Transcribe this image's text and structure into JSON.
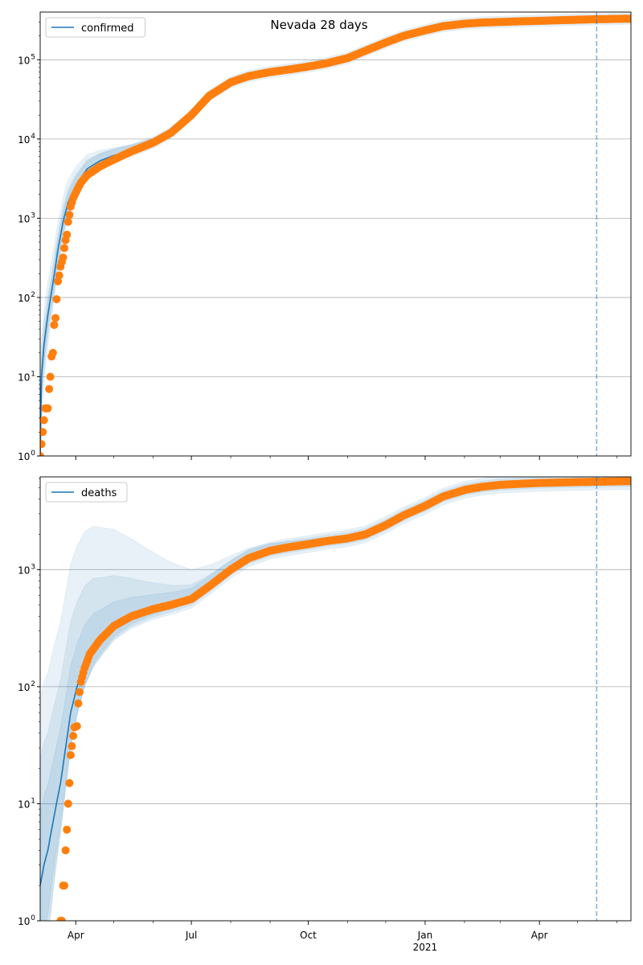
{
  "chart_data": [
    {
      "type": "line",
      "title": "Nevada 28 days",
      "yscale": "log",
      "ylim": [
        1,
        400000
      ],
      "xlim": [
        "2020-03-04",
        "2021-06-12"
      ],
      "grid": "y-major",
      "legend": {
        "placement": "top-left",
        "entries": [
          "confirmed"
        ]
      },
      "vline": "2021-05-16",
      "ytick_labels": [
        "10^0",
        "10^1",
        "10^2",
        "10^3",
        "10^4",
        "10^5"
      ],
      "colors": {
        "fit": "#1f77b4",
        "observed": "#ff7f0e",
        "band": "#1f77b4"
      },
      "fit": [
        [
          "2020-03-04",
          1
        ],
        [
          "2020-03-05",
          10
        ],
        [
          "2020-03-07",
          25
        ],
        [
          "2020-03-10",
          60
        ],
        [
          "2020-03-14",
          150
        ],
        [
          "2020-03-18",
          400
        ],
        [
          "2020-03-22",
          900
        ],
        [
          "2020-03-26",
          1600
        ],
        [
          "2020-04-01",
          2600
        ],
        [
          "2020-04-10",
          4200
        ],
        [
          "2020-04-20",
          5300
        ],
        [
          "2020-05-01",
          6200
        ],
        [
          "2020-05-15",
          7200
        ],
        [
          "2020-06-01",
          9000
        ],
        [
          "2020-06-15",
          12000
        ],
        [
          "2020-07-01",
          20000
        ],
        [
          "2020-07-15",
          35000
        ],
        [
          "2020-08-01",
          52000
        ],
        [
          "2020-08-15",
          62000
        ],
        [
          "2020-09-01",
          70000
        ],
        [
          "2020-09-15",
          75000
        ],
        [
          "2020-10-01",
          82000
        ],
        [
          "2020-10-15",
          90000
        ],
        [
          "2020-11-01",
          105000
        ],
        [
          "2020-11-15",
          130000
        ],
        [
          "2020-12-01",
          165000
        ],
        [
          "2020-12-15",
          200000
        ],
        [
          "2021-01-01",
          235000
        ],
        [
          "2021-01-15",
          265000
        ],
        [
          "2021-02-01",
          285000
        ],
        [
          "2021-02-15",
          295000
        ],
        [
          "2021-03-01",
          300000
        ],
        [
          "2021-04-01",
          310000
        ],
        [
          "2021-05-01",
          320000
        ],
        [
          "2021-06-12",
          330000
        ]
      ],
      "observed": [
        [
          "2020-03-04",
          1
        ],
        [
          "2020-03-06",
          2
        ],
        [
          "2020-03-08",
          4
        ],
        [
          "2020-03-10",
          4
        ],
        [
          "2020-03-11",
          7
        ],
        [
          "2020-03-12",
          10
        ],
        [
          "2020-03-13",
          18
        ],
        [
          "2020-03-14",
          20
        ],
        [
          "2020-03-15",
          45
        ],
        [
          "2020-03-16",
          55
        ],
        [
          "2020-03-17",
          95
        ],
        [
          "2020-03-18",
          160
        ],
        [
          "2020-03-19",
          190
        ],
        [
          "2020-03-20",
          245
        ],
        [
          "2020-03-21",
          280
        ],
        [
          "2020-03-22",
          320
        ],
        [
          "2020-03-23",
          420
        ],
        [
          "2020-03-24",
          530
        ],
        [
          "2020-03-25",
          620
        ],
        [
          "2020-03-26",
          900
        ],
        [
          "2020-03-27",
          1100
        ],
        [
          "2020-03-28",
          1400
        ],
        [
          "2020-03-30",
          1800
        ],
        [
          "2020-04-01",
          2100
        ],
        [
          "2020-04-05",
          2800
        ],
        [
          "2020-04-10",
          3500
        ],
        [
          "2020-04-20",
          4500
        ],
        [
          "2020-05-01",
          5500
        ],
        [
          "2020-05-15",
          7000
        ],
        [
          "2020-06-01",
          9000
        ],
        [
          "2020-06-15",
          12000
        ],
        [
          "2020-07-01",
          20000
        ],
        [
          "2020-07-15",
          35000
        ],
        [
          "2020-08-01",
          52000
        ],
        [
          "2020-08-15",
          62000
        ],
        [
          "2020-09-01",
          70000
        ],
        [
          "2020-09-15",
          75000
        ],
        [
          "2020-10-01",
          82000
        ],
        [
          "2020-10-15",
          90000
        ],
        [
          "2020-11-01",
          105000
        ],
        [
          "2020-11-15",
          130000
        ],
        [
          "2020-12-01",
          165000
        ],
        [
          "2020-12-15",
          200000
        ],
        [
          "2021-01-01",
          235000
        ],
        [
          "2021-01-15",
          265000
        ],
        [
          "2021-02-01",
          285000
        ],
        [
          "2021-02-15",
          295000
        ],
        [
          "2021-03-01",
          300000
        ],
        [
          "2021-03-15",
          305000
        ],
        [
          "2021-04-01",
          310000
        ],
        [
          "2021-04-15",
          315000
        ],
        [
          "2021-05-01",
          320000
        ],
        [
          "2021-05-15",
          325000
        ],
        [
          "2021-06-12",
          330000
        ]
      ]
    },
    {
      "type": "line",
      "yscale": "log",
      "ylim": [
        1,
        6200
      ],
      "xlim": [
        "2020-03-04",
        "2021-06-12"
      ],
      "grid": "y-major",
      "legend": {
        "placement": "top-left",
        "entries": [
          "deaths"
        ]
      },
      "vline": "2021-05-16",
      "ytick_labels": [
        "10^0",
        "10^1",
        "10^2",
        "10^3"
      ],
      "xtick_labels": [
        "Apr",
        "Jul",
        "Oct",
        "Jan",
        "Apr"
      ],
      "xtick_year": "2021",
      "colors": {
        "fit": "#1f77b4",
        "observed": "#ff7f0e",
        "band": "#1f77b4"
      },
      "fit": [
        [
          "2020-03-04",
          2
        ],
        [
          "2020-03-07",
          3
        ],
        [
          "2020-03-10",
          4
        ],
        [
          "2020-03-13",
          6
        ],
        [
          "2020-03-16",
          9
        ],
        [
          "2020-03-20",
          15
        ],
        [
          "2020-03-24",
          30
        ],
        [
          "2020-03-28",
          60
        ],
        [
          "2020-04-02",
          100
        ],
        [
          "2020-04-08",
          160
        ],
        [
          "2020-04-15",
          220
        ],
        [
          "2020-05-01",
          330
        ],
        [
          "2020-05-15",
          400
        ],
        [
          "2020-06-01",
          460
        ],
        [
          "2020-06-15",
          500
        ],
        [
          "2020-07-01",
          560
        ],
        [
          "2020-07-15",
          720
        ],
        [
          "2020-08-01",
          1000
        ],
        [
          "2020-08-15",
          1250
        ],
        [
          "2020-09-01",
          1450
        ],
        [
          "2020-09-15",
          1550
        ],
        [
          "2020-10-01",
          1650
        ],
        [
          "2020-10-15",
          1750
        ],
        [
          "2020-11-01",
          1850
        ],
        [
          "2020-11-15",
          2000
        ],
        [
          "2020-12-01",
          2400
        ],
        [
          "2020-12-15",
          2900
        ],
        [
          "2021-01-01",
          3500
        ],
        [
          "2021-01-15",
          4200
        ],
        [
          "2021-02-01",
          4800
        ],
        [
          "2021-02-15",
          5100
        ],
        [
          "2021-03-01",
          5300
        ],
        [
          "2021-04-01",
          5500
        ],
        [
          "2021-05-01",
          5600
        ],
        [
          "2021-06-12",
          5700
        ]
      ],
      "observed": [
        [
          "2020-03-20",
          1
        ],
        [
          "2020-03-21",
          1
        ],
        [
          "2020-03-22",
          2
        ],
        [
          "2020-03-23",
          2
        ],
        [
          "2020-03-24",
          4
        ],
        [
          "2020-03-25",
          6
        ],
        [
          "2020-03-26",
          10
        ],
        [
          "2020-03-27",
          15
        ],
        [
          "2020-03-28",
          26
        ],
        [
          "2020-03-29",
          31
        ],
        [
          "2020-03-30",
          38
        ],
        [
          "2020-03-31",
          45
        ],
        [
          "2020-04-02",
          46
        ],
        [
          "2020-04-03",
          72
        ],
        [
          "2020-04-04",
          90
        ],
        [
          "2020-04-05",
          110
        ],
        [
          "2020-04-08",
          145
        ],
        [
          "2020-04-12",
          190
        ],
        [
          "2020-04-20",
          250
        ],
        [
          "2020-05-01",
          330
        ],
        [
          "2020-05-15",
          400
        ],
        [
          "2020-06-01",
          460
        ],
        [
          "2020-06-15",
          500
        ],
        [
          "2020-07-01",
          560
        ],
        [
          "2020-07-15",
          720
        ],
        [
          "2020-08-01",
          1000
        ],
        [
          "2020-08-15",
          1250
        ],
        [
          "2020-09-01",
          1450
        ],
        [
          "2020-09-15",
          1550
        ],
        [
          "2020-10-01",
          1650
        ],
        [
          "2020-10-15",
          1750
        ],
        [
          "2020-11-01",
          1850
        ],
        [
          "2020-11-15",
          2000
        ],
        [
          "2020-12-01",
          2400
        ],
        [
          "2020-12-15",
          2900
        ],
        [
          "2021-01-01",
          3500
        ],
        [
          "2021-01-15",
          4200
        ],
        [
          "2021-02-01",
          4800
        ],
        [
          "2021-02-15",
          5100
        ],
        [
          "2021-03-01",
          5300
        ],
        [
          "2021-03-15",
          5400
        ],
        [
          "2021-04-01",
          5500
        ],
        [
          "2021-05-01",
          5600
        ],
        [
          "2021-06-12",
          5700
        ]
      ]
    }
  ]
}
